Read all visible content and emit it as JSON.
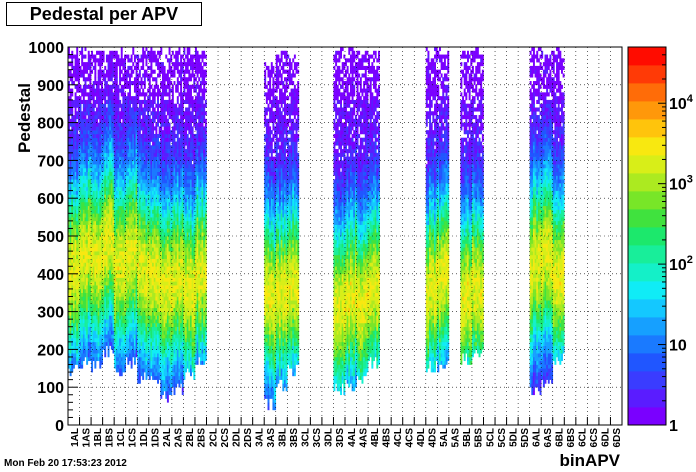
{
  "title": "Pedestal per APV",
  "footer_timestamp": "Mon Feb 20 17:53:23 2012",
  "chart_data": {
    "type": "heatmap",
    "title": "Pedestal per APV",
    "xlabel": "binAPV",
    "ylabel": "Pedestal",
    "ylim": [
      0,
      1000
    ],
    "yticks": [
      "0",
      "100",
      "200",
      "300",
      "400",
      "500",
      "600",
      "700",
      "800",
      "900",
      "1000"
    ],
    "colorbar": {
      "scale": "log",
      "range": [
        1,
        50000
      ],
      "labels": [
        "1",
        "10",
        "10",
        "10",
        "10"
      ],
      "exponents": [
        "",
        "",
        "2",
        "3",
        "4"
      ]
    },
    "grid": true,
    "categories": [
      "1AL",
      "1AS",
      "1BL",
      "1BS",
      "1CL",
      "1CS",
      "1DL",
      "1DS",
      "2AL",
      "2AS",
      "2BL",
      "2BS",
      "2CL",
      "2CS",
      "2DL",
      "2DS",
      "3AL",
      "3AS",
      "3BL",
      "3BS",
      "3CL",
      "3CS",
      "3DL",
      "3DS",
      "4AL",
      "4AS",
      "4BL",
      "4BS",
      "4CL",
      "4CS",
      "4DL",
      "4DS",
      "5AL",
      "5AS",
      "5BL",
      "5BS",
      "5CL",
      "5CS",
      "5DL",
      "5DS",
      "6AL",
      "6AS",
      "6BL",
      "6BS",
      "6CL",
      "6CS",
      "6DL",
      "6DS"
    ],
    "active_columns": [
      {
        "col": 0,
        "ymin": 130,
        "ymax": 1000,
        "peak": 400
      },
      {
        "col": 1,
        "ymin": 150,
        "ymax": 1000,
        "peak": 450
      },
      {
        "col": 2,
        "ymin": 140,
        "ymax": 1000,
        "peak": 420
      },
      {
        "col": 3,
        "ymin": 180,
        "ymax": 1000,
        "peak": 480
      },
      {
        "col": 4,
        "ymin": 120,
        "ymax": 1000,
        "peak": 420
      },
      {
        "col": 5,
        "ymin": 150,
        "ymax": 1000,
        "peak": 460
      },
      {
        "col": 6,
        "ymin": 110,
        "ymax": 1000,
        "peak": 400
      },
      {
        "col": 7,
        "ymin": 100,
        "ymax": 1000,
        "peak": 380
      },
      {
        "col": 8,
        "ymin": 60,
        "ymax": 1000,
        "peak": 360
      },
      {
        "col": 9,
        "ymin": 80,
        "ymax": 1000,
        "peak": 380
      },
      {
        "col": 10,
        "ymin": 120,
        "ymax": 1000,
        "peak": 350
      },
      {
        "col": 11,
        "ymin": 160,
        "ymax": 1000,
        "peak": 400
      },
      {
        "col": 17,
        "ymin": 40,
        "ymax": 960,
        "peak": 320
      },
      {
        "col": 18,
        "ymin": 90,
        "ymax": 1000,
        "peak": 340
      },
      {
        "col": 19,
        "ymin": 130,
        "ymax": 980,
        "peak": 360
      },
      {
        "col": 23,
        "ymin": 80,
        "ymax": 1000,
        "peak": 300
      },
      {
        "col": 24,
        "ymin": 90,
        "ymax": 1000,
        "peak": 340
      },
      {
        "col": 25,
        "ymin": 110,
        "ymax": 1000,
        "peak": 320
      },
      {
        "col": 26,
        "ymin": 150,
        "ymax": 1000,
        "peak": 360
      },
      {
        "col": 31,
        "ymin": 140,
        "ymax": 1000,
        "peak": 350
      },
      {
        "col": 32,
        "ymin": 140,
        "ymax": 1000,
        "peak": 380
      },
      {
        "col": 34,
        "ymin": 160,
        "ymax": 1000,
        "peak": 330
      },
      {
        "col": 35,
        "ymin": 180,
        "ymax": 1000,
        "peak": 360
      },
      {
        "col": 40,
        "ymin": 80,
        "ymax": 1000,
        "peak": 420
      },
      {
        "col": 41,
        "ymin": 100,
        "ymax": 1000,
        "peak": 430
      },
      {
        "col": 42,
        "ymin": 160,
        "ymax": 1000,
        "peak": 380
      }
    ]
  }
}
